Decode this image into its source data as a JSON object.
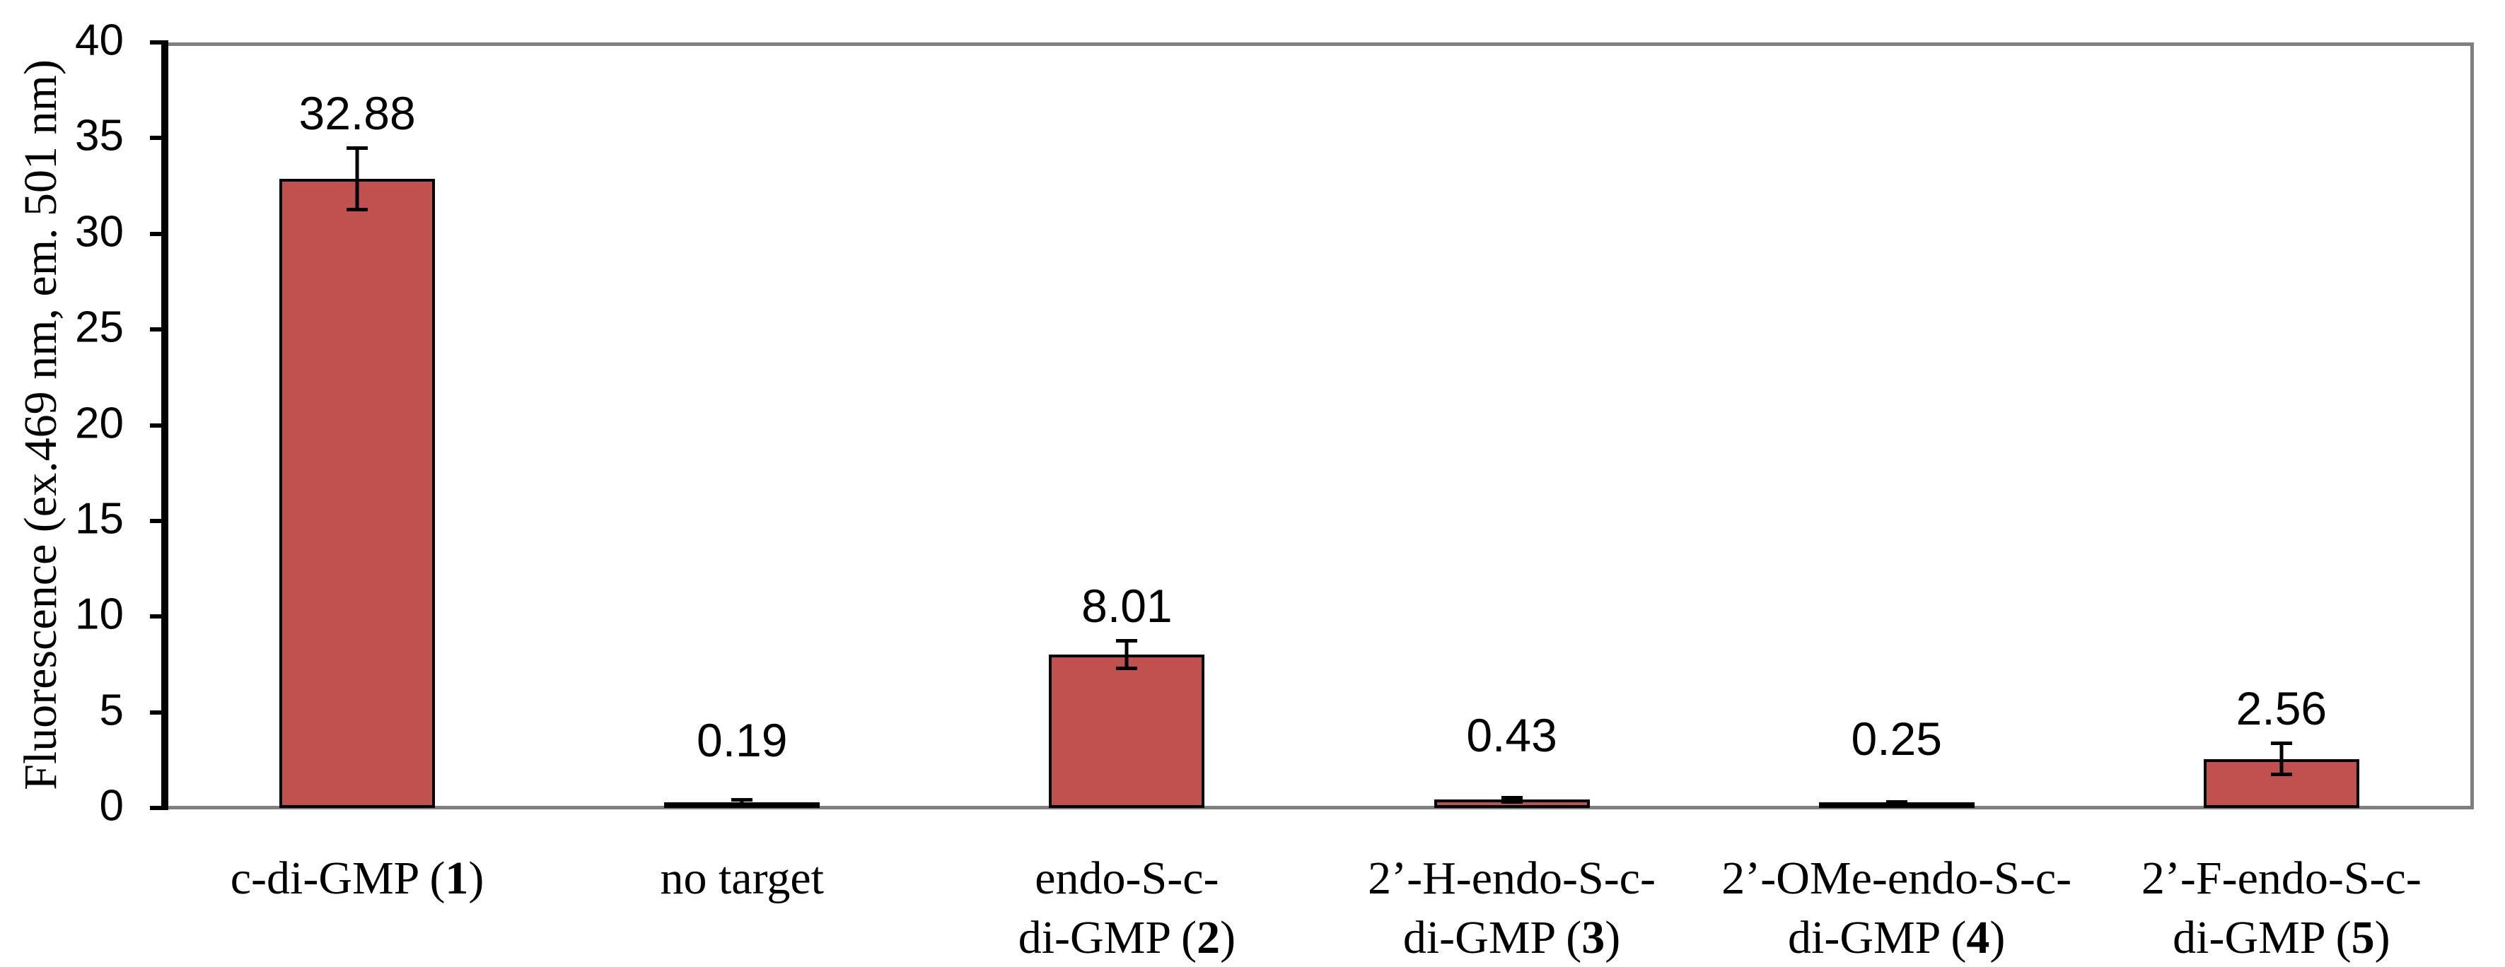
{
  "chart_data": {
    "type": "bar",
    "title": "",
    "xlabel": "",
    "ylabel": "Fluorescence (ex.469 nm, em. 501 nm)",
    "ylim": [
      0,
      40
    ],
    "ytick_step": 5,
    "grid": false,
    "legend": false,
    "yticks": [
      "40",
      "35",
      "30",
      "25",
      "20",
      "15",
      "10",
      "5",
      "0"
    ],
    "categories": [
      "c-di-GMP (1)",
      "no target",
      "endo-S-c-di-GMP (2)",
      "2’-H-endo-S-c-di-GMP (3)",
      "2’-OMe-endo-S-c-di-GMP (4)",
      "2’-F-endo-S-c-di-GMP (5)"
    ],
    "values": [
      32.88,
      0.19,
      8.01,
      0.43,
      0.25,
      2.56
    ],
    "value_labels": [
      "32.88",
      "0.19",
      "8.01",
      "0.43",
      "0.25",
      "2.56"
    ],
    "errors": [
      1.7,
      0.25,
      0.8,
      0.2,
      0.15,
      0.9
    ],
    "bar_color": "#C0514F",
    "bar_border_color": "#000000",
    "axis_color": "#000000",
    "plot_border_color": "#7F7F7F",
    "categories_rich": [
      {
        "line1": {
          "pre": "c-di-GMP (",
          "bold": "1",
          "post": ")"
        },
        "line2": {
          "pre": "",
          "bold": "",
          "post": ""
        }
      },
      {
        "line1": {
          "pre": "no target",
          "bold": "",
          "post": ""
        },
        "line2": {
          "pre": "",
          "bold": "",
          "post": ""
        }
      },
      {
        "line1": {
          "pre": "endo-S-c-",
          "bold": "",
          "post": ""
        },
        "line2": {
          "pre": "di-GMP (",
          "bold": "2",
          "post": ")"
        }
      },
      {
        "line1": {
          "pre": "2’-H-endo-S-c-",
          "bold": "",
          "post": ""
        },
        "line2": {
          "pre": "di-GMP (",
          "bold": "3",
          "post": ")"
        }
      },
      {
        "line1": {
          "pre": "2’-OMe-endo-S-c-",
          "bold": "",
          "post": ""
        },
        "line2": {
          "pre": "di-GMP (",
          "bold": "4",
          "post": ")"
        }
      },
      {
        "line1": {
          "pre": "2’-F-endo-S-c-",
          "bold": "",
          "post": ""
        },
        "line2": {
          "pre": "di-GMP (",
          "bold": "5",
          "post": ")"
        }
      }
    ]
  }
}
